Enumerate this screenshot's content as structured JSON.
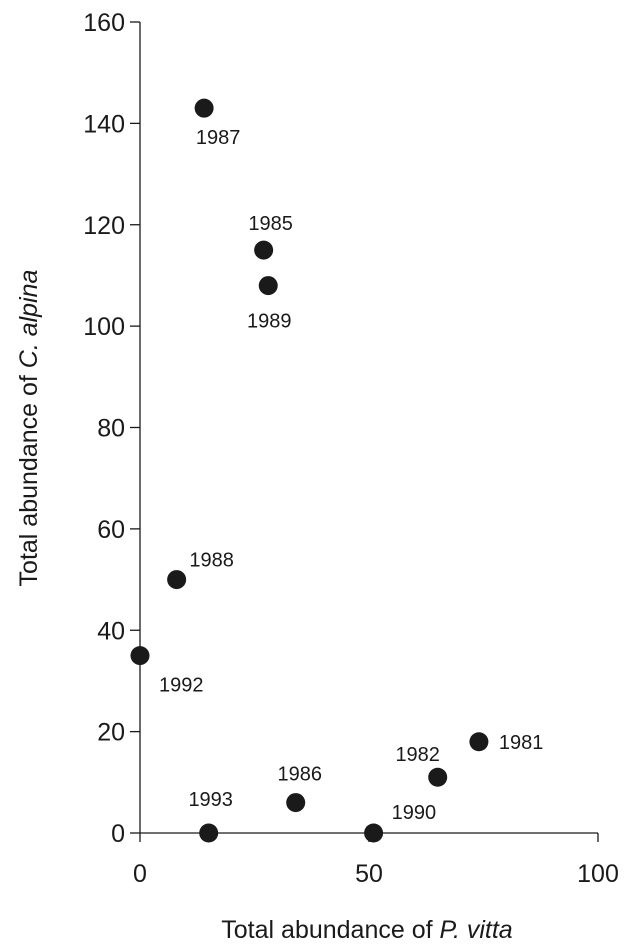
{
  "chart_data": {
    "type": "scatter",
    "xlabel": {
      "prefix": "Total abundance of ",
      "italic": "P. vitta"
    },
    "ylabel": {
      "prefix": "Total abundance of ",
      "italic": "C. alpina"
    },
    "xlim": [
      0,
      100
    ],
    "ylim": [
      0,
      160
    ],
    "x_ticks": [
      "0",
      "50",
      "100"
    ],
    "y_ticks": [
      "0",
      "20",
      "40",
      "60",
      "80",
      "100",
      "120",
      "140",
      "160"
    ],
    "grid": false,
    "legend": "none",
    "marker_color": "#1a1a1a",
    "points": [
      {
        "label": "1981",
        "x": 74,
        "y": 18
      },
      {
        "label": "1982",
        "x": 65,
        "y": 11
      },
      {
        "label": "1985",
        "x": 27,
        "y": 115
      },
      {
        "label": "1986",
        "x": 34,
        "y": 6
      },
      {
        "label": "1987",
        "x": 14,
        "y": 143
      },
      {
        "label": "1988",
        "x": 8,
        "y": 50
      },
      {
        "label": "1989",
        "x": 28,
        "y": 108
      },
      {
        "label": "1990",
        "x": 51,
        "y": 0
      },
      {
        "label": "1992",
        "x": 0,
        "y": 35
      },
      {
        "label": "1993",
        "x": 15,
        "y": 0
      }
    ]
  }
}
